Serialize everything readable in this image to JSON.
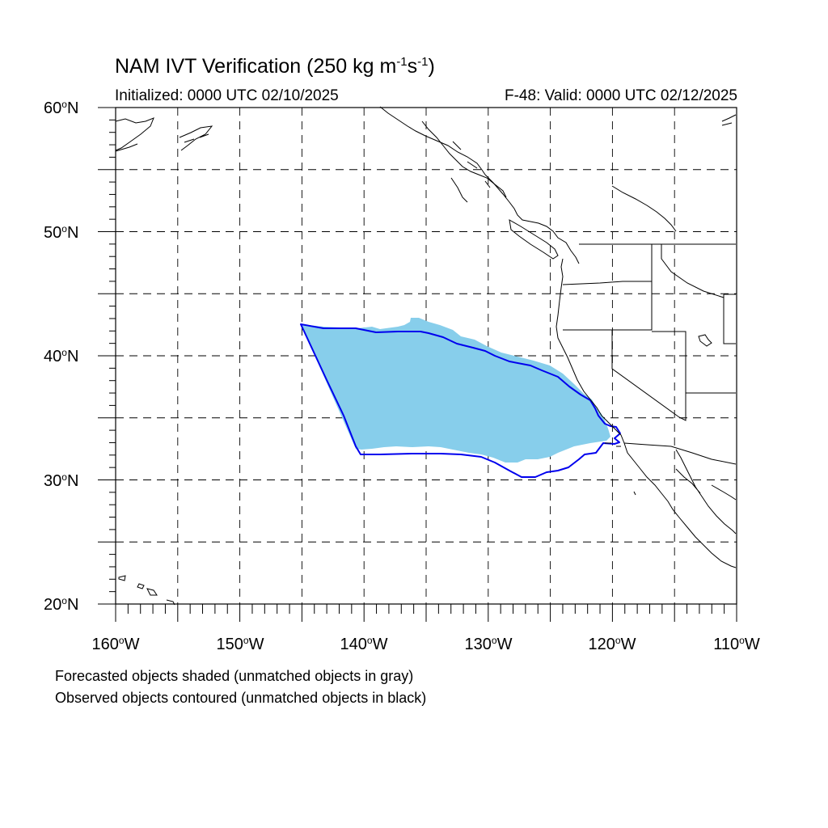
{
  "title": {
    "prefix": "NAM IVT Verification (250 kg m",
    "exp1": "-1",
    "middle": "s",
    "exp2": "-1",
    "suffix": ")"
  },
  "initialized": "Initialized: 0000 UTC 02/10/2025",
  "valid": "F-48: Valid: 0000 UTC 02/12/2025",
  "map": {
    "lon_range": [
      -160,
      -110
    ],
    "lat_range": [
      20,
      60
    ],
    "grid": true,
    "lat_labels": [
      {
        "value": 60,
        "text": "60",
        "suffix": "N"
      },
      {
        "value": 50,
        "text": "50",
        "suffix": "N"
      },
      {
        "value": 40,
        "text": "40",
        "suffix": "N"
      },
      {
        "value": 30,
        "text": "30",
        "suffix": "N"
      },
      {
        "value": 20,
        "text": "20",
        "suffix": "N"
      }
    ],
    "lon_labels": [
      {
        "value": -160,
        "text": "160",
        "suffix": "W"
      },
      {
        "value": -150,
        "text": "150",
        "suffix": "W"
      },
      {
        "value": -140,
        "text": "140",
        "suffix": "W"
      },
      {
        "value": -130,
        "text": "130",
        "suffix": "W"
      },
      {
        "value": -120,
        "text": "120",
        "suffix": "W"
      },
      {
        "value": -110,
        "text": "110",
        "suffix": "W"
      }
    ],
    "degree_symbol": "o",
    "forecast_color": "#87ceeb",
    "observed_color": "#0000ee",
    "coast_color": "#000000"
  },
  "notes": [
    "Forecasted objects shaded (unmatched objects in gray)",
    "Observed objects contoured (unmatched objects in black)"
  ]
}
